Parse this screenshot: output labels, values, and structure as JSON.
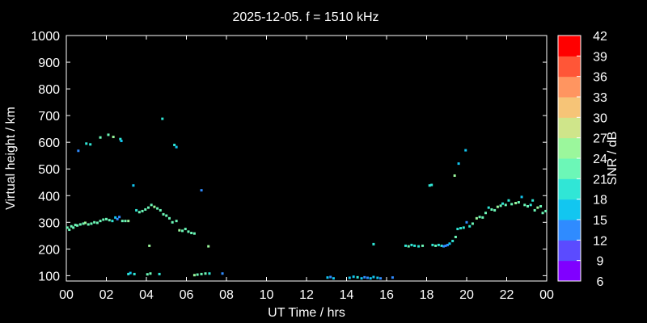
{
  "chart_data": {
    "type": "scatter",
    "title": "2025-12-05. f = 1510 kHz",
    "xlabel": "UT Time / hrs",
    "ylabel": "Virtual height / km",
    "xlim": [
      0,
      24
    ],
    "ylim": [
      80,
      1000
    ],
    "x_ticks": [
      "00",
      "02",
      "04",
      "06",
      "08",
      "10",
      "12",
      "14",
      "16",
      "18",
      "20",
      "22",
      "00"
    ],
    "y_ticks": [
      "100",
      "200",
      "300",
      "400",
      "500",
      "600",
      "700",
      "800",
      "900",
      "1000"
    ],
    "grid": false,
    "colorbar": {
      "label": "SNR / dB",
      "min": 6,
      "max": 42,
      "ticks": [
        "6",
        "9",
        "12",
        "15",
        "18",
        "21",
        "24",
        "27",
        "30",
        "33",
        "36",
        "39",
        "42"
      ],
      "colors": [
        "#8000ff",
        "#5b4bff",
        "#2f8bff",
        "#12c6f0",
        "#30e6d6",
        "#6cf7b7",
        "#9bf79c",
        "#cfe58a",
        "#f6c477",
        "#ff9560",
        "#ff5637",
        "#ff0000"
      ]
    },
    "series": [
      {
        "points": [
          [
            0.05,
            280,
            22
          ],
          [
            0.15,
            272,
            21
          ],
          [
            0.25,
            285,
            22
          ],
          [
            0.35,
            280,
            23
          ],
          [
            0.45,
            290,
            21
          ],
          [
            0.55,
            288,
            22
          ],
          [
            0.7,
            292,
            23
          ],
          [
            0.85,
            295,
            22
          ],
          [
            0.95,
            298,
            24
          ],
          [
            1.1,
            292,
            22
          ],
          [
            1.25,
            295,
            21
          ],
          [
            1.4,
            300,
            22
          ],
          [
            1.55,
            298,
            23
          ],
          [
            1.7,
            305,
            22
          ],
          [
            1.85,
            310,
            21
          ],
          [
            2.0,
            312,
            22
          ],
          [
            2.15,
            308,
            21
          ],
          [
            2.3,
            305,
            20
          ],
          [
            2.45,
            318,
            15
          ],
          [
            2.55,
            312,
            13
          ],
          [
            2.65,
            320,
            14
          ],
          [
            2.8,
            305,
            22
          ],
          [
            2.95,
            305,
            23
          ],
          [
            3.1,
            305,
            24
          ],
          [
            3.5,
            345,
            20
          ],
          [
            3.65,
            338,
            21
          ],
          [
            3.8,
            342,
            22
          ],
          [
            3.95,
            348,
            21
          ],
          [
            4.1,
            355,
            22
          ],
          [
            4.25,
            365,
            23
          ],
          [
            4.4,
            358,
            24
          ],
          [
            4.55,
            352,
            22
          ],
          [
            4.7,
            345,
            21
          ],
          [
            4.85,
            330,
            22
          ],
          [
            5.0,
            325,
            23
          ],
          [
            5.15,
            315,
            22
          ],
          [
            5.3,
            300,
            21
          ],
          [
            5.5,
            305,
            22
          ],
          [
            5.65,
            270,
            24
          ],
          [
            5.8,
            268,
            23
          ],
          [
            5.95,
            275,
            22
          ],
          [
            6.1,
            265,
            21
          ],
          [
            6.25,
            260,
            22
          ],
          [
            6.4,
            258,
            23
          ],
          [
            0.6,
            568,
            12
          ],
          [
            1.0,
            595,
            20
          ],
          [
            1.2,
            592,
            18
          ],
          [
            1.7,
            618,
            22
          ],
          [
            2.1,
            628,
            21
          ],
          [
            2.35,
            620,
            24
          ],
          [
            2.7,
            612,
            18
          ],
          [
            2.75,
            605,
            16
          ],
          [
            3.35,
            438,
            17
          ],
          [
            4.8,
            688,
            18
          ],
          [
            5.4,
            590,
            19
          ],
          [
            5.5,
            582,
            16
          ],
          [
            6.75,
            420,
            12
          ],
          [
            4.15,
            212,
            24
          ],
          [
            7.1,
            210,
            25
          ],
          [
            3.1,
            106,
            18
          ],
          [
            3.2,
            110,
            16
          ],
          [
            3.4,
            106,
            20
          ],
          [
            4.05,
            105,
            22
          ],
          [
            4.2,
            108,
            21
          ],
          [
            4.65,
            106,
            18
          ],
          [
            6.4,
            102,
            24
          ],
          [
            6.55,
            104,
            23
          ],
          [
            6.75,
            106,
            22
          ],
          [
            6.95,
            108,
            21
          ],
          [
            7.15,
            108,
            20
          ],
          [
            7.8,
            108,
            12
          ],
          [
            13.05,
            93,
            15
          ],
          [
            13.2,
            95,
            14
          ],
          [
            13.35,
            90,
            16
          ],
          [
            14.15,
            92,
            15
          ],
          [
            14.35,
            96,
            17
          ],
          [
            14.55,
            94,
            18
          ],
          [
            14.75,
            90,
            16
          ],
          [
            14.9,
            94,
            14
          ],
          [
            15.05,
            92,
            13
          ],
          [
            15.2,
            90,
            15
          ],
          [
            15.35,
            95,
            17
          ],
          [
            15.55,
            92,
            16
          ],
          [
            15.7,
            90,
            12
          ],
          [
            16.3,
            93,
            13
          ],
          [
            15.35,
            218,
            19
          ],
          [
            16.95,
            212,
            20
          ],
          [
            17.1,
            210,
            21
          ],
          [
            17.25,
            215,
            18
          ],
          [
            17.4,
            212,
            19
          ],
          [
            17.6,
            210,
            20
          ],
          [
            17.8,
            212,
            21
          ],
          [
            18.15,
            438,
            18
          ],
          [
            18.25,
            440,
            19
          ],
          [
            18.3,
            215,
            20
          ],
          [
            18.45,
            212,
            21
          ],
          [
            18.6,
            215,
            19
          ],
          [
            18.75,
            212,
            18
          ],
          [
            18.85,
            210,
            12
          ],
          [
            18.95,
            212,
            13
          ],
          [
            19.05,
            215,
            14
          ],
          [
            19.15,
            220,
            15
          ],
          [
            19.3,
            230,
            20
          ],
          [
            19.45,
            245,
            21
          ],
          [
            19.55,
            275,
            18
          ],
          [
            19.7,
            278,
            19
          ],
          [
            19.85,
            280,
            18
          ],
          [
            20.0,
            300,
            12
          ],
          [
            20.15,
            285,
            20
          ],
          [
            20.3,
            295,
            22
          ],
          [
            20.5,
            315,
            24
          ],
          [
            20.65,
            320,
            23
          ],
          [
            20.8,
            318,
            22
          ],
          [
            20.95,
            335,
            21
          ],
          [
            21.1,
            355,
            20
          ],
          [
            21.25,
            348,
            22
          ],
          [
            21.4,
            345,
            21
          ],
          [
            21.55,
            358,
            24
          ],
          [
            21.7,
            362,
            22
          ],
          [
            21.8,
            370,
            20
          ],
          [
            21.95,
            365,
            21
          ],
          [
            22.1,
            382,
            19
          ],
          [
            22.25,
            368,
            22
          ],
          [
            22.45,
            372,
            24
          ],
          [
            22.6,
            375,
            23
          ],
          [
            22.75,
            395,
            17
          ],
          [
            22.9,
            365,
            22
          ],
          [
            23.05,
            360,
            21
          ],
          [
            23.2,
            365,
            20
          ],
          [
            23.3,
            382,
            18
          ],
          [
            23.4,
            345,
            22
          ],
          [
            23.55,
            355,
            24
          ],
          [
            23.7,
            360,
            23
          ],
          [
            23.8,
            335,
            22
          ],
          [
            23.95,
            342,
            21
          ],
          [
            19.4,
            475,
            24
          ],
          [
            19.6,
            520,
            15
          ],
          [
            19.95,
            570,
            16
          ]
        ]
      }
    ]
  }
}
